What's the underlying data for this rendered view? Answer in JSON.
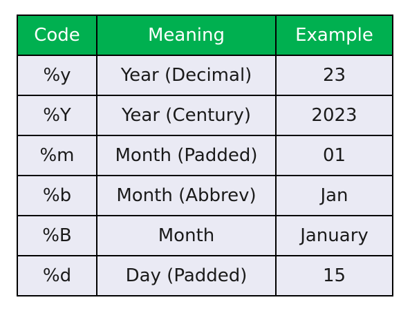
{
  "table": {
    "header_bg": "#00b050",
    "cell_bg": "#eaeaf4",
    "columns": [
      "Code",
      "Meaning",
      "Example"
    ],
    "rows": [
      [
        "%y",
        "Year (Decimal)",
        "23"
      ],
      [
        "%Y",
        "Year (Century)",
        "2023"
      ],
      [
        "%m",
        "Month (Padded)",
        "01"
      ],
      [
        "%b",
        "Month (Abbrev)",
        "Jan"
      ],
      [
        "%B",
        "Month",
        "January"
      ],
      [
        "%d",
        "Day (Padded)",
        "15"
      ]
    ]
  }
}
